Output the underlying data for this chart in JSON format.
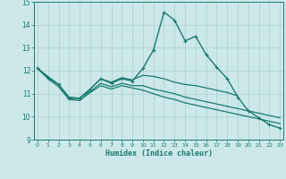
{
  "xlabel": "Humidex (Indice chaleur)",
  "x_ticks": [
    0,
    1,
    2,
    3,
    4,
    5,
    6,
    7,
    8,
    9,
    10,
    11,
    12,
    13,
    14,
    15,
    16,
    17,
    18,
    19,
    20,
    21,
    22,
    23
  ],
  "ylim": [
    9,
    15
  ],
  "xlim": [
    -0.3,
    23.3
  ],
  "y_ticks": [
    9,
    10,
    11,
    12,
    13,
    14,
    15
  ],
  "bg_color": "#cce8e8",
  "grid_color": "#b0d4d4",
  "line_color": "#1a7a6e",
  "series": [
    {
      "x": [
        0,
        1,
        2,
        3,
        4,
        5,
        6,
        7,
        8,
        9,
        10,
        11,
        12,
        13,
        14,
        15,
        16,
        17,
        18,
        19,
        20,
        21,
        22,
        23
      ],
      "y": [
        12.1,
        11.7,
        11.4,
        10.8,
        10.8,
        11.2,
        11.65,
        11.45,
        11.65,
        11.55,
        12.1,
        12.9,
        14.55,
        14.2,
        13.3,
        13.5,
        12.7,
        12.15,
        11.65,
        10.85,
        10.25,
        9.95,
        9.65,
        9.5
      ],
      "marker": true
    },
    {
      "x": [
        0,
        1,
        2,
        3,
        4,
        5,
        6,
        7,
        8,
        9,
        10,
        11,
        12,
        13,
        14,
        15,
        16,
        17,
        18,
        19
      ],
      "y": [
        12.1,
        11.7,
        11.4,
        10.8,
        10.8,
        11.2,
        11.65,
        11.5,
        11.7,
        11.6,
        11.8,
        11.75,
        11.65,
        11.5,
        11.4,
        11.35,
        11.25,
        11.15,
        11.05,
        10.9
      ],
      "marker": false
    },
    {
      "x": [
        0,
        1,
        2,
        3,
        4,
        5,
        6,
        7,
        8,
        9,
        10,
        11,
        12,
        13,
        14,
        15,
        16,
        17,
        18,
        19,
        20,
        21,
        22,
        23
      ],
      "y": [
        12.1,
        11.75,
        11.4,
        10.85,
        10.8,
        11.1,
        11.45,
        11.3,
        11.45,
        11.35,
        11.35,
        11.2,
        11.1,
        11.0,
        10.85,
        10.75,
        10.65,
        10.55,
        10.45,
        10.35,
        10.25,
        10.15,
        10.05,
        9.95
      ],
      "marker": false
    },
    {
      "x": [
        0,
        1,
        2,
        3,
        4,
        5,
        6,
        7,
        8,
        9,
        10,
        11,
        12,
        13,
        14,
        15,
        16,
        17,
        18,
        19,
        20,
        21,
        22,
        23
      ],
      "y": [
        12.1,
        11.65,
        11.3,
        10.75,
        10.7,
        11.05,
        11.35,
        11.2,
        11.35,
        11.25,
        11.15,
        11.0,
        10.85,
        10.75,
        10.6,
        10.5,
        10.4,
        10.3,
        10.2,
        10.1,
        10.0,
        9.9,
        9.8,
        9.7
      ],
      "marker": false
    }
  ]
}
